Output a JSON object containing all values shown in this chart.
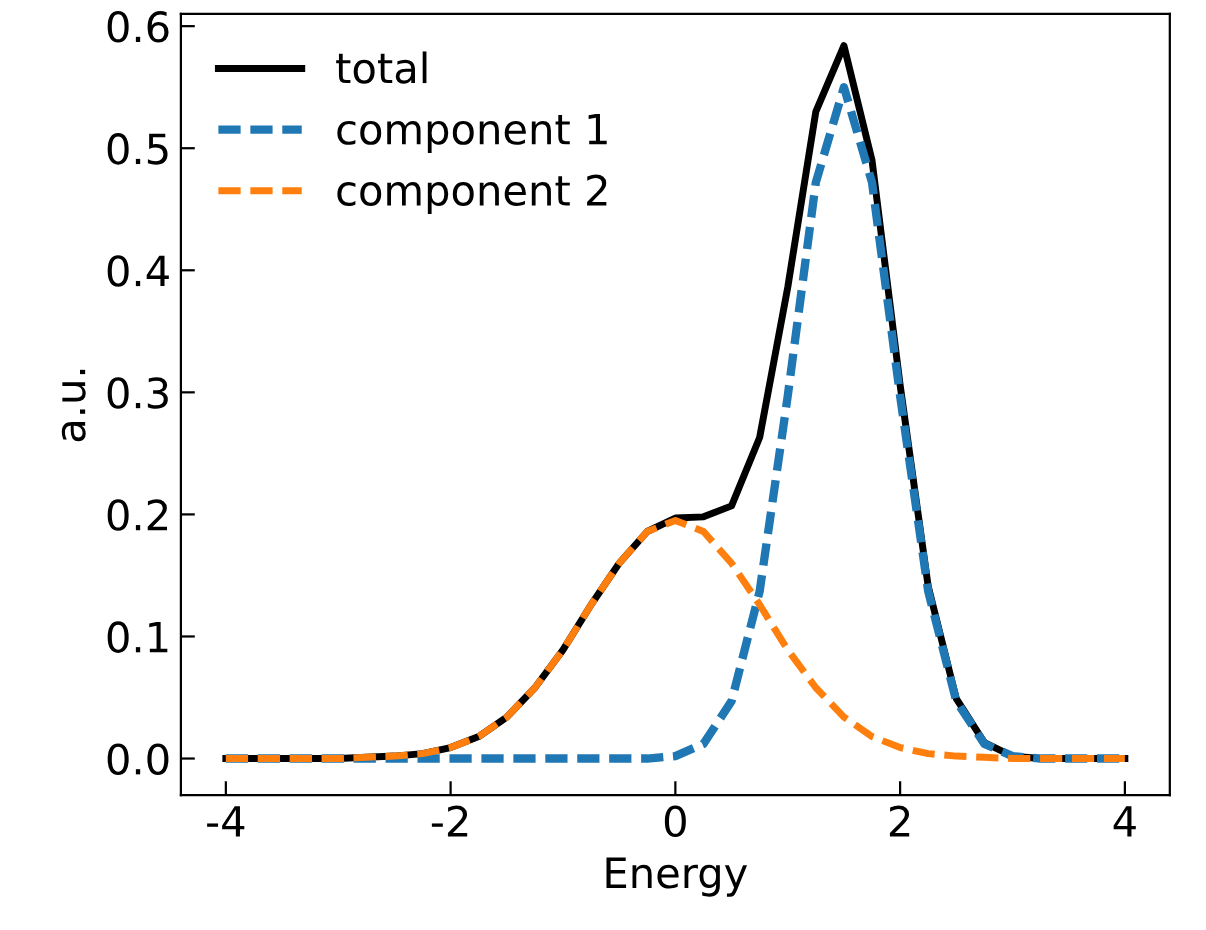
{
  "chart_data": {
    "type": "line",
    "xlabel": "Energy",
    "ylabel": "a.u.",
    "x": [
      -4,
      -3.75,
      -3.5,
      -3.25,
      -3,
      -2.75,
      -2.5,
      -2.25,
      -2,
      -1.75,
      -1.5,
      -1.25,
      -1,
      -0.75,
      -0.5,
      -0.25,
      0,
      0.25,
      0.5,
      0.75,
      1,
      1.25,
      1.5,
      1.75,
      2,
      2.25,
      2.5,
      2.75,
      3,
      3.25,
      3.5,
      3.75,
      4
    ],
    "series": [
      {
        "name": "total",
        "color": "#000000",
        "line_style": "solid",
        "values": [
          0,
          0,
          0,
          0,
          0,
          0.001,
          0.002,
          0.004,
          0.009,
          0.018,
          0.034,
          0.058,
          0.089,
          0.126,
          0.16,
          0.186,
          0.197,
          0.198,
          0.207,
          0.263,
          0.386,
          0.53,
          0.584,
          0.49,
          0.306,
          0.141,
          0.049,
          0.013,
          0.002,
          0,
          0,
          0,
          0
        ]
      },
      {
        "name": "component 1",
        "color": "#1f77b4",
        "line_style": "dashed",
        "values": [
          0,
          0,
          0,
          0,
          0,
          0,
          0,
          0,
          0,
          0,
          0,
          0,
          0,
          0,
          0,
          0,
          0.002,
          0.012,
          0.047,
          0.137,
          0.297,
          0.472,
          0.55,
          0.472,
          0.297,
          0.137,
          0.047,
          0.012,
          0.002,
          0,
          0,
          0,
          0
        ]
      },
      {
        "name": "component 2",
        "color": "#ff7f0e",
        "line_style": "dashed",
        "values": [
          0,
          0,
          0,
          0,
          0,
          0.001,
          0.002,
          0.004,
          0.009,
          0.018,
          0.034,
          0.058,
          0.089,
          0.126,
          0.16,
          0.186,
          0.195,
          0.186,
          0.16,
          0.126,
          0.089,
          0.058,
          0.034,
          0.018,
          0.009,
          0.004,
          0.002,
          0.001,
          0,
          0,
          0,
          0,
          0
        ]
      }
    ],
    "xlim": [
      -4.4,
      4.4
    ],
    "ylim": [
      -0.03,
      0.61
    ],
    "xticks": [
      -4,
      -2,
      0,
      2,
      4
    ],
    "yticks": [
      {
        "value": 0,
        "label": "0.0"
      },
      0.1,
      0.2,
      0.3,
      0.4,
      0.5,
      0.6
    ],
    "legend": "top left",
    "grid": false
  }
}
